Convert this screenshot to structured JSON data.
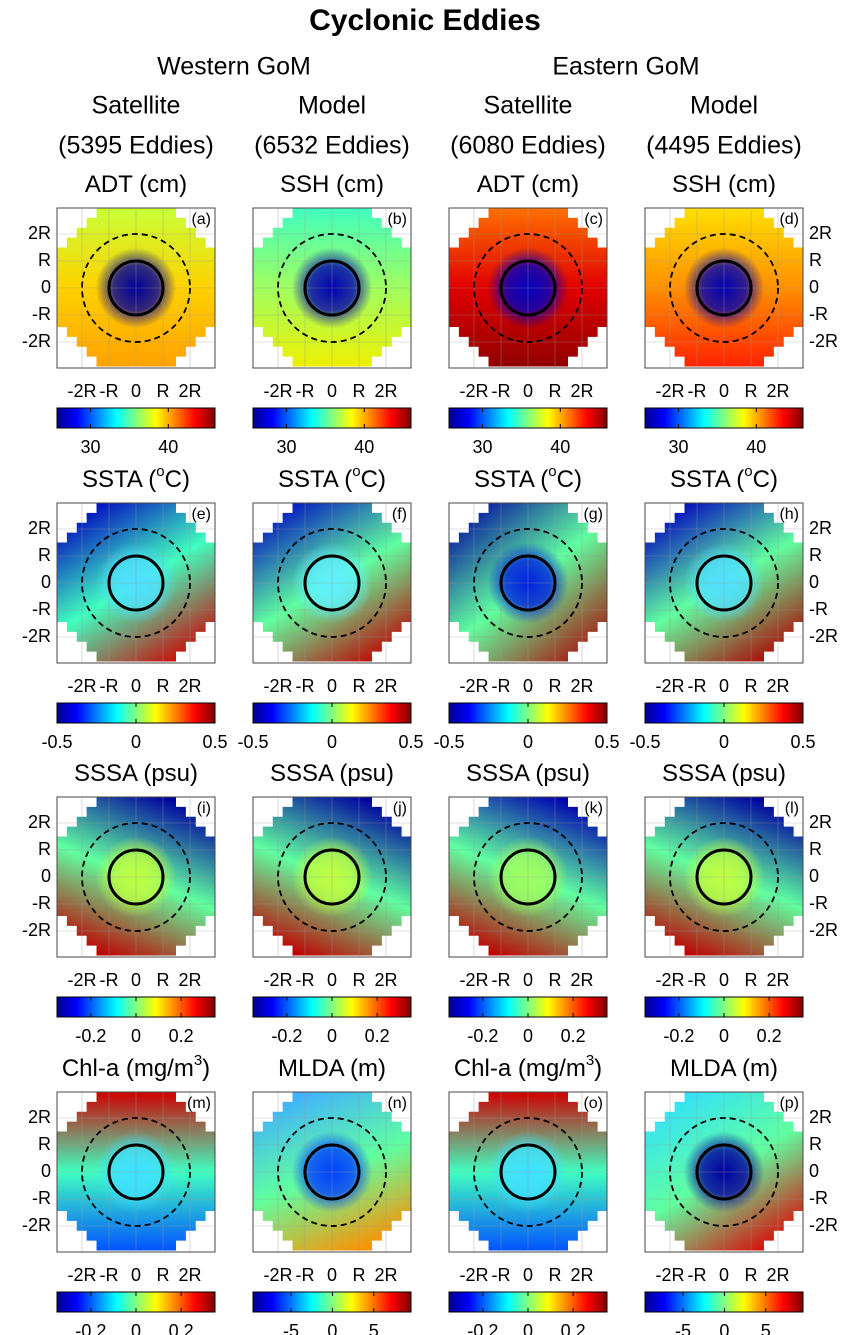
{
  "title": "Cyclonic Eddies",
  "regions": [
    "Western GoM",
    "Eastern GoM"
  ],
  "columns": [
    {
      "source": "Satellite",
      "count": "(5395 Eddies)"
    },
    {
      "source": "Model",
      "count": "(6532 Eddies)"
    },
    {
      "source": "Satellite",
      "count": "(6080 Eddies)"
    },
    {
      "source": "Model",
      "count": "(4495 Eddies)"
    }
  ],
  "axis_ticks": [
    "-2R",
    "-R",
    "0",
    "R",
    "2R"
  ],
  "rows": [
    {
      "panels": [
        {
          "title": "ADT (cm)",
          "letter": "(a)",
          "cbar_lim": [
            25.7,
            46
          ],
          "cbar_ticks": [
            30,
            40
          ]
        },
        {
          "title": "SSH (cm)",
          "letter": "(b)",
          "cbar_lim": [
            25.7,
            46
          ],
          "cbar_ticks": [
            30,
            40
          ]
        },
        {
          "title": "ADT (cm)",
          "letter": "(c)",
          "cbar_lim": [
            25.7,
            46
          ],
          "cbar_ticks": [
            30,
            40
          ]
        },
        {
          "title": "SSH (cm)",
          "letter": "(d)",
          "cbar_lim": [
            25.7,
            46
          ],
          "cbar_ticks": [
            30,
            40
          ]
        }
      ]
    },
    {
      "panels": [
        {
          "title": "SSTA (",
          "title_sup": "o",
          "title_end": "C)",
          "letter": "(e)",
          "cbar_lim": [
            -0.5,
            0.5
          ],
          "cbar_ticks": [
            -0.5,
            0,
            0.5
          ]
        },
        {
          "title": "SSTA (",
          "title_sup": "o",
          "title_end": "C)",
          "letter": "(f)",
          "cbar_lim": [
            -0.5,
            0.5
          ],
          "cbar_ticks": [
            -0.5,
            0,
            0.5
          ]
        },
        {
          "title": "SSTA (",
          "title_sup": "o",
          "title_end": "C)",
          "letter": "(g)",
          "cbar_lim": [
            -0.5,
            0.5
          ],
          "cbar_ticks": [
            -0.5,
            0,
            0.5
          ]
        },
        {
          "title": "SSTA (",
          "title_sup": "o",
          "title_end": "C)",
          "letter": "(h)",
          "cbar_lim": [
            -0.5,
            0.5
          ],
          "cbar_ticks": [
            -0.5,
            0,
            0.5
          ]
        }
      ]
    },
    {
      "panels": [
        {
          "title": "SSSA (psu)",
          "letter": "(i)",
          "cbar_lim": [
            -0.35,
            0.35
          ],
          "cbar_ticks": [
            -0.2,
            0,
            0.2
          ]
        },
        {
          "title": "SSSA (psu)",
          "letter": "(j)",
          "cbar_lim": [
            -0.35,
            0.35
          ],
          "cbar_ticks": [
            -0.2,
            0,
            0.2
          ]
        },
        {
          "title": "SSSA (psu)",
          "letter": "(k)",
          "cbar_lim": [
            -0.35,
            0.35
          ],
          "cbar_ticks": [
            -0.2,
            0,
            0.2
          ]
        },
        {
          "title": "SSSA (psu)",
          "letter": "(l)",
          "cbar_lim": [
            -0.35,
            0.35
          ],
          "cbar_ticks": [
            -0.2,
            0,
            0.2
          ]
        }
      ]
    },
    {
      "panels": [
        {
          "title": "Chl-a (mg/m",
          "title_sup": "3",
          "title_end": ")",
          "letter": "(m)",
          "cbar_lim": [
            -0.35,
            0.35
          ],
          "cbar_ticks": [
            -0.2,
            0,
            0.2
          ]
        },
        {
          "title": "MLDA (m)",
          "letter": "(n)",
          "cbar_lim": [
            -9.6,
            9.5
          ],
          "cbar_ticks": [
            -5,
            0,
            5
          ]
        },
        {
          "title": "Chl-a (mg/m",
          "title_sup": "3",
          "title_end": ")",
          "letter": "(o)",
          "cbar_lim": [
            -0.35,
            0.35
          ],
          "cbar_ticks": [
            -0.2,
            0,
            0.2
          ]
        },
        {
          "title": "MLDA (m)",
          "letter": "(p)",
          "cbar_lim": [
            -9.6,
            9.5
          ],
          "cbar_ticks": [
            -5,
            0,
            5
          ]
        }
      ]
    }
  ]
}
